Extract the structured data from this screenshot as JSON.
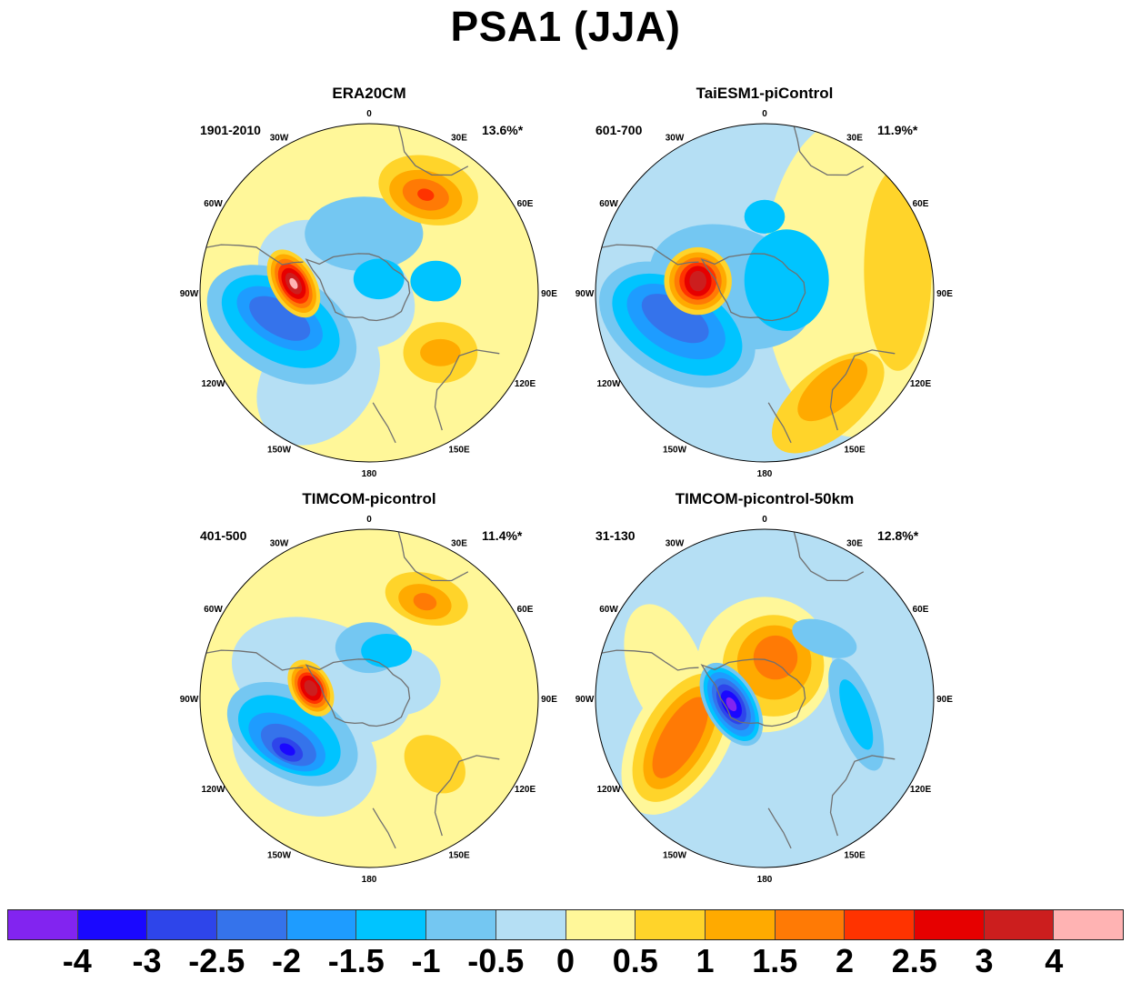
{
  "title": "PSA1 (JJA)",
  "lon_labels": [
    "0",
    "30E",
    "60E",
    "90E",
    "120E",
    "150E",
    "180",
    "150W",
    "120W",
    "90W",
    "60W",
    "30W"
  ],
  "palette": {
    "-4": "#8224f0",
    "-3": "#1a08ff",
    "-2.5": "#2e45ea",
    "-2": "#3573eb",
    "-1.5": "#1e9cff",
    "-1": "#00c4ff",
    "-0.5": "#74c7f2",
    "0": "#b5dff4",
    "0.5": "#fff799",
    "1": "#ffd42a",
    "1.5": "#ffaa00",
    "2": "#ff7a05",
    "2.5": "#ff3300",
    "3": "#e60000",
    "4": "#cc1e1e",
    "5": "#ffb3b3"
  },
  "panels": [
    {
      "name": "ERA20CM",
      "years": "1901-2010",
      "variance": "13.6%*",
      "background": "#fff799",
      "blobs": [
        {
          "lon": -75,
          "r": 0.2,
          "rx": 0.5,
          "ry": 0.33,
          "rot": 30,
          "c": "#b5dff4"
        },
        {
          "lon": -150,
          "r": 0.6,
          "rx": 0.32,
          "ry": 0.42,
          "rot": 40,
          "c": "#b5dff4"
        },
        {
          "lon": -110,
          "r": 0.55,
          "rx": 0.48,
          "ry": 0.3,
          "rot": 30,
          "c": "#74c7f2"
        },
        {
          "lon": -108,
          "r": 0.55,
          "rx": 0.38,
          "ry": 0.23,
          "rot": 30,
          "c": "#00c4ff"
        },
        {
          "lon": -106,
          "r": 0.55,
          "rx": 0.28,
          "ry": 0.15,
          "rot": 30,
          "c": "#1e9cff"
        },
        {
          "lon": -106,
          "r": 0.55,
          "rx": 0.2,
          "ry": 0.1,
          "rot": 30,
          "c": "#3573eb"
        },
        {
          "lon": -5,
          "r": 0.35,
          "rx": 0.35,
          "ry": 0.22,
          "rot": 0,
          "c": "#74c7f2"
        },
        {
          "lon": 35,
          "r": 0.1,
          "rx": 0.15,
          "ry": 0.12,
          "rot": 0,
          "c": "#00c4ff"
        },
        {
          "lon": 80,
          "r": 0.4,
          "rx": 0.15,
          "ry": 0.12,
          "rot": 0,
          "c": "#00c4ff"
        },
        {
          "lon": 30,
          "r": 0.7,
          "rx": 0.3,
          "ry": 0.2,
          "rot": 15,
          "c": "#ffd42a"
        },
        {
          "lon": 30,
          "r": 0.67,
          "rx": 0.22,
          "ry": 0.14,
          "rot": 15,
          "c": "#ffaa00"
        },
        {
          "lon": 30,
          "r": 0.67,
          "rx": 0.14,
          "ry": 0.09,
          "rot": 15,
          "c": "#ff7a05"
        },
        {
          "lon": 30,
          "r": 0.67,
          "rx": 0.05,
          "ry": 0.035,
          "rot": 15,
          "c": "#ff3300"
        },
        {
          "lon": 130,
          "r": 0.55,
          "rx": 0.22,
          "ry": 0.18,
          "rot": 0,
          "c": "#ffd42a"
        },
        {
          "lon": 130,
          "r": 0.55,
          "rx": 0.12,
          "ry": 0.08,
          "rot": 0,
          "c": "#ffaa00"
        },
        {
          "lon": -83,
          "r": 0.45,
          "rx": 0.13,
          "ry": 0.22,
          "rot": -30,
          "c": "#ffd42a"
        },
        {
          "lon": -83,
          "r": 0.45,
          "rx": 0.11,
          "ry": 0.19,
          "rot": -30,
          "c": "#ffaa00"
        },
        {
          "lon": -83,
          "r": 0.45,
          "rx": 0.09,
          "ry": 0.16,
          "rot": -30,
          "c": "#ff7a05"
        },
        {
          "lon": -83,
          "r": 0.45,
          "rx": 0.075,
          "ry": 0.13,
          "rot": -30,
          "c": "#ff3300"
        },
        {
          "lon": -83,
          "r": 0.45,
          "rx": 0.06,
          "ry": 0.1,
          "rot": -30,
          "c": "#e60000"
        },
        {
          "lon": -83,
          "r": 0.45,
          "rx": 0.04,
          "ry": 0.07,
          "rot": -30,
          "c": "#cc1e1e"
        },
        {
          "lon": -83,
          "r": 0.45,
          "rx": 0.02,
          "ry": 0.035,
          "rot": -30,
          "c": "#ffb3b3"
        }
      ]
    },
    {
      "name": "TaiESM1-piControl",
      "years": "601-700",
      "variance": "11.9%*",
      "background": "#b5dff4",
      "blobs": [
        {
          "lon": 80,
          "r": 0.55,
          "rx": 0.55,
          "ry": 0.95,
          "rot": 0,
          "c": "#fff799"
        },
        {
          "lon": 80,
          "r": 0.8,
          "rx": 0.2,
          "ry": 0.6,
          "rot": 0,
          "c": "#ffd42a"
        },
        {
          "lon": 150,
          "r": 0.75,
          "rx": 0.4,
          "ry": 0.2,
          "rot": -40,
          "c": "#ffd42a"
        },
        {
          "lon": 145,
          "r": 0.7,
          "rx": 0.25,
          "ry": 0.12,
          "rot": -40,
          "c": "#ffaa00"
        },
        {
          "lon": -80,
          "r": 0.2,
          "rx": 0.5,
          "ry": 0.35,
          "rot": 20,
          "c": "#74c7f2"
        },
        {
          "lon": -110,
          "r": 0.55,
          "rx": 0.5,
          "ry": 0.32,
          "rot": 30,
          "c": "#74c7f2"
        },
        {
          "lon": -110,
          "r": 0.55,
          "rx": 0.42,
          "ry": 0.25,
          "rot": 30,
          "c": "#00c4ff"
        },
        {
          "lon": -108,
          "r": 0.55,
          "rx": 0.32,
          "ry": 0.18,
          "rot": 30,
          "c": "#1e9cff"
        },
        {
          "lon": -106,
          "r": 0.55,
          "rx": 0.22,
          "ry": 0.11,
          "rot": 30,
          "c": "#3573eb"
        },
        {
          "lon": 0,
          "r": 0.45,
          "rx": 0.12,
          "ry": 0.1,
          "rot": 0,
          "c": "#00c4ff"
        },
        {
          "lon": 60,
          "r": 0.15,
          "rx": 0.25,
          "ry": 0.3,
          "rot": 0,
          "c": "#00c4ff"
        },
        {
          "lon": -80,
          "r": 0.4,
          "rx": 0.2,
          "ry": 0.2,
          "rot": 0,
          "c": "#ffd42a"
        },
        {
          "lon": -80,
          "r": 0.4,
          "rx": 0.17,
          "ry": 0.17,
          "rot": 0,
          "c": "#ffaa00"
        },
        {
          "lon": -80,
          "r": 0.4,
          "rx": 0.14,
          "ry": 0.14,
          "rot": 0,
          "c": "#ff7a05"
        },
        {
          "lon": -80,
          "r": 0.4,
          "rx": 0.11,
          "ry": 0.11,
          "rot": 0,
          "c": "#ff3300"
        },
        {
          "lon": -80,
          "r": 0.4,
          "rx": 0.08,
          "ry": 0.09,
          "rot": 0,
          "c": "#e60000"
        },
        {
          "lon": -80,
          "r": 0.4,
          "rx": 0.05,
          "ry": 0.06,
          "rot": 0,
          "c": "#cc1e1e"
        }
      ]
    },
    {
      "name": "TIMCOM-picontrol",
      "years": "401-500",
      "variance": "11.4%*",
      "background": "#fff799",
      "blobs": [
        {
          "lon": -70,
          "r": 0.3,
          "rx": 0.55,
          "ry": 0.35,
          "rot": 20,
          "c": "#b5dff4"
        },
        {
          "lon": -130,
          "r": 0.5,
          "rx": 0.45,
          "ry": 0.35,
          "rot": 30,
          "c": "#b5dff4"
        },
        {
          "lon": 60,
          "r": 0.2,
          "rx": 0.25,
          "ry": 0.2,
          "rot": 0,
          "c": "#b5dff4"
        },
        {
          "lon": -115,
          "r": 0.5,
          "rx": 0.42,
          "ry": 0.26,
          "rot": 30,
          "c": "#74c7f2"
        },
        {
          "lon": -115,
          "r": 0.52,
          "rx": 0.33,
          "ry": 0.2,
          "rot": 30,
          "c": "#00c4ff"
        },
        {
          "lon": -118,
          "r": 0.55,
          "rx": 0.25,
          "ry": 0.14,
          "rot": 30,
          "c": "#1e9cff"
        },
        {
          "lon": -120,
          "r": 0.55,
          "rx": 0.18,
          "ry": 0.1,
          "rot": 30,
          "c": "#3573eb"
        },
        {
          "lon": -122,
          "r": 0.57,
          "rx": 0.1,
          "ry": 0.06,
          "rot": 30,
          "c": "#2e45ea"
        },
        {
          "lon": -122,
          "r": 0.57,
          "rx": 0.05,
          "ry": 0.03,
          "rot": 30,
          "c": "#1a08ff"
        },
        {
          "lon": 0,
          "r": 0.3,
          "rx": 0.2,
          "ry": 0.15,
          "rot": 0,
          "c": "#74c7f2"
        },
        {
          "lon": 20,
          "r": 0.3,
          "rx": 0.15,
          "ry": 0.1,
          "rot": 0,
          "c": "#00c4ff"
        },
        {
          "lon": 30,
          "r": 0.68,
          "rx": 0.25,
          "ry": 0.15,
          "rot": 15,
          "c": "#ffd42a"
        },
        {
          "lon": 30,
          "r": 0.66,
          "rx": 0.16,
          "ry": 0.1,
          "rot": 15,
          "c": "#ffaa00"
        },
        {
          "lon": 30,
          "r": 0.66,
          "rx": 0.07,
          "ry": 0.05,
          "rot": 15,
          "c": "#ff7a05"
        },
        {
          "lon": 135,
          "r": 0.55,
          "rx": 0.2,
          "ry": 0.15,
          "rot": 40,
          "c": "#ffd42a"
        },
        {
          "lon": -80,
          "r": 0.35,
          "rx": 0.12,
          "ry": 0.18,
          "rot": -30,
          "c": "#ffd42a"
        },
        {
          "lon": -80,
          "r": 0.35,
          "rx": 0.1,
          "ry": 0.15,
          "rot": -30,
          "c": "#ffaa00"
        },
        {
          "lon": -80,
          "r": 0.35,
          "rx": 0.085,
          "ry": 0.125,
          "rot": -30,
          "c": "#ff7a05"
        },
        {
          "lon": -80,
          "r": 0.35,
          "rx": 0.07,
          "ry": 0.1,
          "rot": -30,
          "c": "#ff3300"
        },
        {
          "lon": -80,
          "r": 0.35,
          "rx": 0.055,
          "ry": 0.08,
          "rot": -30,
          "c": "#e60000"
        },
        {
          "lon": -80,
          "r": 0.35,
          "rx": 0.035,
          "ry": 0.05,
          "rot": -30,
          "c": "#cc1e1e"
        }
      ]
    },
    {
      "name": "TIMCOM-picontrol-50km",
      "years": "31-130",
      "variance": "12.8%*",
      "background": "#b5dff4",
      "blobs": [
        {
          "lon": -75,
          "r": 0.6,
          "rx": 0.22,
          "ry": 0.42,
          "rot": -20,
          "c": "#fff799"
        },
        {
          "lon": -115,
          "r": 0.55,
          "rx": 0.28,
          "ry": 0.5,
          "rot": 30,
          "c": "#fff799"
        },
        {
          "lon": 0,
          "r": 0.2,
          "rx": 0.4,
          "ry": 0.4,
          "rot": 0,
          "c": "#fff799"
        },
        {
          "lon": -115,
          "r": 0.55,
          "rx": 0.22,
          "ry": 0.42,
          "rot": 30,
          "c": "#ffd42a"
        },
        {
          "lon": -115,
          "r": 0.55,
          "rx": 0.16,
          "ry": 0.34,
          "rot": 30,
          "c": "#ffaa00"
        },
        {
          "lon": -115,
          "r": 0.55,
          "rx": 0.11,
          "ry": 0.27,
          "rot": 30,
          "c": "#ff7a05"
        },
        {
          "lon": 15,
          "r": 0.2,
          "rx": 0.3,
          "ry": 0.3,
          "rot": 0,
          "c": "#ffd42a"
        },
        {
          "lon": 15,
          "r": 0.22,
          "rx": 0.22,
          "ry": 0.22,
          "rot": 0,
          "c": "#ffaa00"
        },
        {
          "lon": 15,
          "r": 0.25,
          "rx": 0.13,
          "ry": 0.13,
          "rot": 0,
          "c": "#ff7a05"
        },
        {
          "lon": 100,
          "r": 0.55,
          "rx": 0.12,
          "ry": 0.35,
          "rot": -20,
          "c": "#74c7f2"
        },
        {
          "lon": 100,
          "r": 0.55,
          "rx": 0.07,
          "ry": 0.22,
          "rot": -20,
          "c": "#00c4ff"
        },
        {
          "lon": 45,
          "r": 0.5,
          "rx": 0.2,
          "ry": 0.1,
          "rot": 20,
          "c": "#74c7f2"
        },
        {
          "lon": -100,
          "r": 0.2,
          "rx": 0.15,
          "ry": 0.27,
          "rot": -30,
          "c": "#74c7f2"
        },
        {
          "lon": -100,
          "r": 0.2,
          "rx": 0.13,
          "ry": 0.24,
          "rot": -30,
          "c": "#00c4ff"
        },
        {
          "lon": -100,
          "r": 0.2,
          "rx": 0.11,
          "ry": 0.21,
          "rot": -30,
          "c": "#1e9cff"
        },
        {
          "lon": -100,
          "r": 0.2,
          "rx": 0.09,
          "ry": 0.17,
          "rot": -30,
          "c": "#3573eb"
        },
        {
          "lon": -100,
          "r": 0.2,
          "rx": 0.07,
          "ry": 0.13,
          "rot": -30,
          "c": "#2e45ea"
        },
        {
          "lon": -100,
          "r": 0.2,
          "rx": 0.05,
          "ry": 0.09,
          "rot": -30,
          "c": "#1a08ff"
        },
        {
          "lon": -100,
          "r": 0.2,
          "rx": 0.025,
          "ry": 0.045,
          "rot": -30,
          "c": "#8224f0"
        }
      ]
    }
  ],
  "colorbar": {
    "colors": [
      "#8224f0",
      "#1a08ff",
      "#2e45ea",
      "#3573eb",
      "#1e9cff",
      "#00c4ff",
      "#74c7f2",
      "#b5dff4",
      "#fff799",
      "#ffd42a",
      "#ffaa00",
      "#ff7a05",
      "#ff3300",
      "#e60000",
      "#cc1e1e",
      "#ffb3b3"
    ],
    "labels": [
      "-4",
      "-3",
      "-2.5",
      "-2",
      "-1.5",
      "-1",
      "-0.5",
      "0",
      "0.5",
      "1",
      "1.5",
      "2",
      "2.5",
      "3",
      "4"
    ]
  }
}
